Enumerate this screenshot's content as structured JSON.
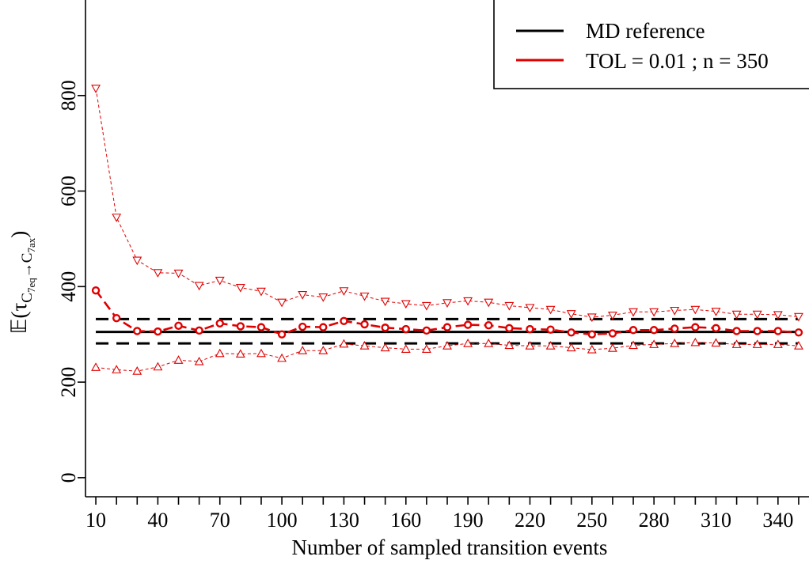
{
  "chart_data": {
    "type": "line",
    "xlabel": "Number of sampled transition events",
    "ylabel": {
      "prefix": "𝔼(τ",
      "sub_from": "C",
      "sub_from_idx": "7eq",
      "arrow": "→",
      "sub_to": "C",
      "sub_to_idx": "7ax",
      "suffix": ")"
    },
    "xlim": [
      5,
      355
    ],
    "ylim": [
      -40,
      1000
    ],
    "x_ticks": [
      10,
      20,
      30,
      40,
      50,
      60,
      70,
      80,
      90,
      100,
      110,
      120,
      130,
      140,
      150,
      160,
      170,
      180,
      190,
      200,
      210,
      220,
      230,
      240,
      250,
      260,
      270,
      280,
      290,
      300,
      310,
      320,
      330,
      340,
      350
    ],
    "x_tick_labels": [
      "10",
      "40",
      "70",
      "100",
      "130",
      "160",
      "190",
      "220",
      "250",
      "280",
      "310",
      "340"
    ],
    "y_ticks": [
      0,
      200,
      400,
      600,
      800
    ],
    "y_tick_labels": [
      "0",
      "200",
      "400",
      "600",
      "800"
    ],
    "colors": {
      "md": "#000000",
      "tol": "#e00000"
    },
    "legend": {
      "placement": "top-right",
      "entries": [
        "MD reference",
        "TOL = 0.01 ; n = 350"
      ]
    },
    "md_reference": {
      "mean": 305,
      "lower": 281,
      "upper": 332,
      "x_range": [
        10,
        350
      ]
    },
    "x": [
      10,
      20,
      30,
      40,
      50,
      60,
      70,
      80,
      90,
      100,
      110,
      120,
      130,
      140,
      150,
      160,
      170,
      180,
      190,
      200,
      210,
      220,
      230,
      240,
      250,
      260,
      270,
      280,
      290,
      300,
      310,
      320,
      330,
      340,
      350
    ],
    "series": [
      {
        "name": "TOL = 0.01 ; n = 350",
        "role": "mean",
        "values": [
          392,
          334,
          307,
          306,
          318,
          308,
          323,
          317,
          315,
          300,
          316,
          315,
          328,
          321,
          314,
          311,
          308,
          315,
          320,
          319,
          313,
          311,
          310,
          304,
          300,
          302,
          309,
          309,
          312,
          315,
          313,
          307,
          307,
          307,
          304
        ]
      },
      {
        "role": "upper",
        "values": [
          815,
          545,
          455,
          429,
          428,
          402,
          413,
          398,
          390,
          367,
          383,
          378,
          391,
          380,
          369,
          364,
          360,
          366,
          370,
          367,
          360,
          356,
          352,
          343,
          336,
          340,
          347,
          347,
          350,
          352,
          348,
          342,
          342,
          341,
          337
        ]
      },
      {
        "role": "lower",
        "values": [
          231,
          226,
          223,
          232,
          246,
          243,
          260,
          259,
          260,
          250,
          266,
          266,
          280,
          276,
          272,
          269,
          269,
          276,
          281,
          281,
          277,
          276,
          276,
          272,
          268,
          271,
          277,
          279,
          281,
          283,
          282,
          279,
          279,
          279,
          276
        ]
      }
    ]
  }
}
